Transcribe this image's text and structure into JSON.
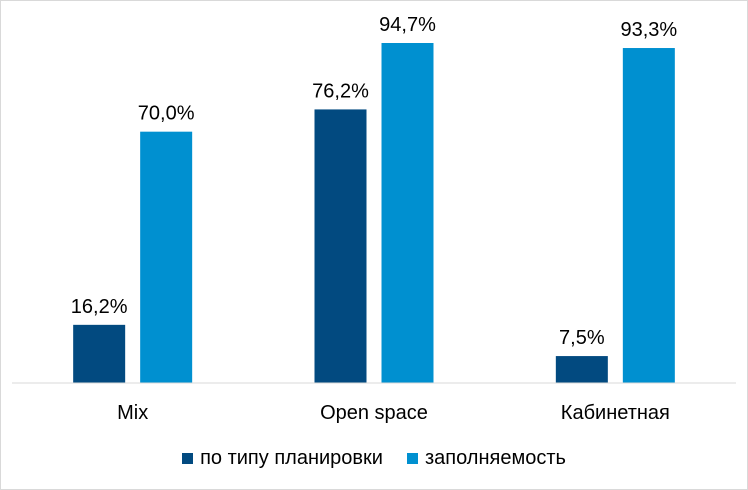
{
  "chart_data": {
    "type": "bar",
    "categories": [
      "Mix",
      "Open space",
      "Кабинетная"
    ],
    "series": [
      {
        "name": "по типу планировки",
        "color": "#024a80",
        "values": [
          16.2,
          76.2,
          7.5
        ],
        "labels": [
          "16,2%",
          "76,2%",
          "7,5%"
        ]
      },
      {
        "name": "заполняемость",
        "color": "#0090d0",
        "values": [
          70.0,
          94.7,
          93.3
        ],
        "labels": [
          "70,0%",
          "94,7%",
          "93,3%"
        ]
      }
    ],
    "ylim": [
      0,
      100
    ],
    "grid": false,
    "legend_position": "bottom"
  }
}
